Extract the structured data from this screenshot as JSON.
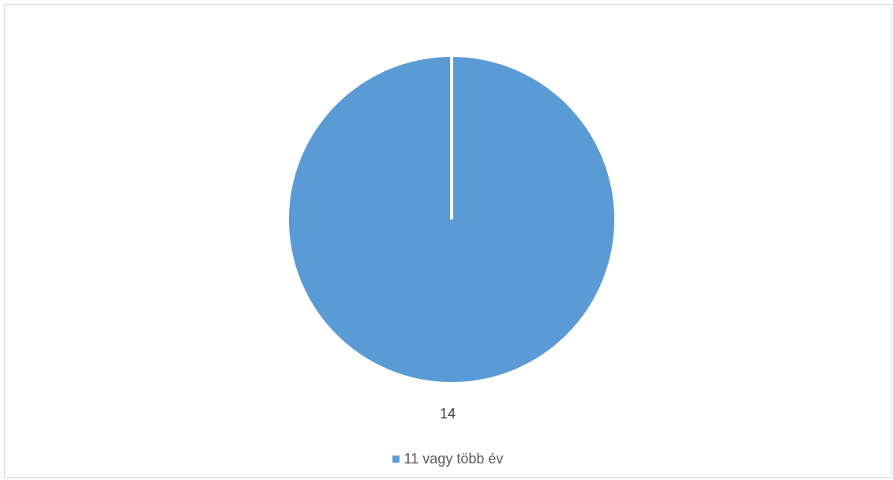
{
  "chart_data": {
    "type": "pie",
    "categories": [
      "11 vagy több év"
    ],
    "values": [
      14
    ],
    "data_labels": [
      "14"
    ],
    "colors": [
      "#5b9bd5"
    ],
    "legend_position": "bottom",
    "title": ""
  }
}
